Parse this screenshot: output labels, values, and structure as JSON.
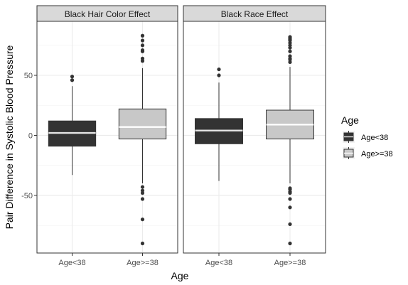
{
  "chart_data": {
    "type": "boxplot",
    "xlabel": "Age",
    "ylabel": "Pair Difference in Systolic Blood Pressure",
    "ylim": [
      -98,
      95
    ],
    "yticks": [
      -50,
      0,
      50
    ],
    "grid": true,
    "legend": {
      "title": "Age",
      "position": "right",
      "entries": [
        {
          "label": "Age<38",
          "color": "#333333"
        },
        {
          "label": "Age>=38",
          "color": "#c8c8c8"
        }
      ]
    },
    "panels": [
      {
        "title": "Black Hair Color Effect",
        "boxes": [
          {
            "category": "Age<38",
            "color": "#333333",
            "median_color": "#e6e6e6",
            "q1": -9,
            "median": 2,
            "q3": 12,
            "whisker_low": -33,
            "whisker_high": 41,
            "outliers": [
              46,
              49
            ]
          },
          {
            "category": "Age>=38",
            "color": "#c8c8c8",
            "median_color": "#ffffff",
            "q1": -3,
            "median": 7,
            "q3": 22,
            "whisker_low": -40,
            "whisker_high": 56,
            "outliers": [
              62,
              64,
              70,
              71,
              75,
              79,
              83,
              -43,
              -46,
              -48,
              -53,
              -70,
              -90
            ]
          }
        ]
      },
      {
        "title": "Black Race Effect",
        "boxes": [
          {
            "category": "Age<38",
            "color": "#333333",
            "median_color": "#e6e6e6",
            "q1": -7,
            "median": 4,
            "q3": 14,
            "whisker_low": -38,
            "whisker_high": 44,
            "outliers": [
              50,
              55
            ]
          },
          {
            "category": "Age>=38",
            "color": "#c8c8c8",
            "median_color": "#ffffff",
            "q1": -3,
            "median": 9,
            "q3": 21,
            "whisker_low": -40,
            "whisker_high": 57,
            "outliers": [
              61,
              63,
              64,
              66,
              70,
              73,
              75,
              77,
              79,
              80,
              81,
              82,
              -44,
              -45,
              -47,
              -48,
              -53,
              -60,
              -74,
              -90
            ]
          }
        ]
      }
    ]
  }
}
